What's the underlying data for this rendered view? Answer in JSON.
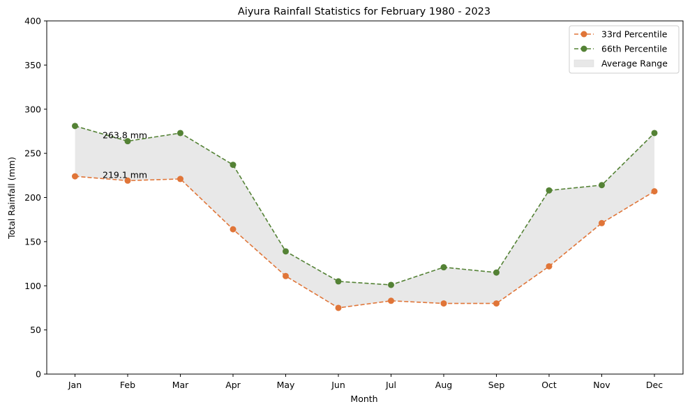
{
  "chart_data": {
    "type": "line",
    "title": "Aiyura Rainfall Statistics for February 1980 - 2023",
    "xlabel": "Month",
    "ylabel": "Total Rainfall (mm)",
    "categories": [
      "Jan",
      "Feb",
      "Mar",
      "Apr",
      "May",
      "Jun",
      "Jul",
      "Aug",
      "Sep",
      "Oct",
      "Nov",
      "Dec"
    ],
    "ylim": [
      0,
      400
    ],
    "yticks": [
      "0",
      "50",
      "100",
      "150",
      "200",
      "250",
      "300",
      "350",
      "400"
    ],
    "series": [
      {
        "name": "33rd Percentile",
        "color": "#e07538",
        "values": [
          224,
          219.1,
          221,
          164,
          111,
          75,
          83,
          80,
          80,
          122,
          171,
          207
        ]
      },
      {
        "name": "66th Percentile",
        "color": "#548235",
        "values": [
          281,
          263.8,
          273,
          237,
          139,
          105,
          101,
          121,
          115,
          208,
          214,
          273
        ]
      }
    ],
    "fill_between": {
      "name": "Average Range",
      "color": "#e8e8e8"
    },
    "annotations": [
      {
        "text": "263.8 mm",
        "x": "Feb",
        "y": 263.8
      },
      {
        "text": "219.1 mm",
        "x": "Feb",
        "y": 219.1
      }
    ],
    "grid": false,
    "legend_position": "top-right"
  }
}
